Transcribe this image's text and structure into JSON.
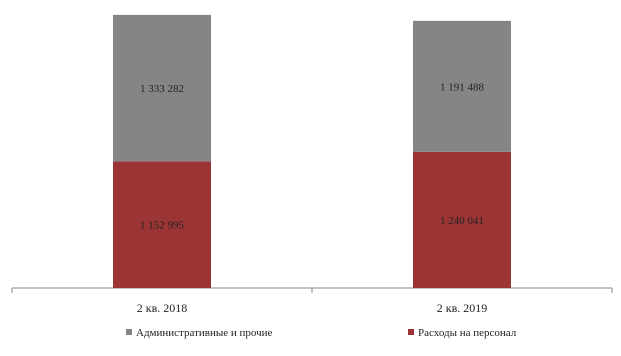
{
  "chart_data": {
    "type": "bar",
    "stacked": true,
    "categories": [
      "2 кв. 2018",
      "2 кв. 2019"
    ],
    "series": [
      {
        "name": "Расходы на персонал",
        "values": [
          1152995,
          1240041
        ],
        "labels": [
          "1 152 995",
          "1 240 041"
        ],
        "color": "#9b3535"
      },
      {
        "name": "Административные и прочие",
        "values": [
          1333282,
          1191488
        ],
        "labels": [
          "1 333 282",
          "1 191 488"
        ],
        "color": "#858585"
      }
    ],
    "legend_order": [
      1,
      0
    ],
    "ylim": [
      0,
      2485000
    ],
    "grid": false,
    "legend_position": "bottom"
  }
}
